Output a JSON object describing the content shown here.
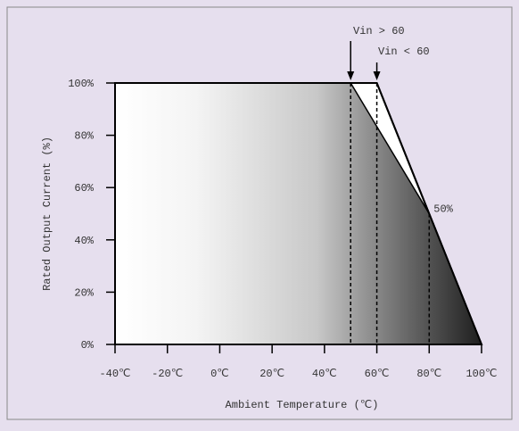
{
  "chart_data": {
    "type": "area",
    "xlabel": "Ambient Temperature (℃)",
    "ylabel": "Rated Output Current (%)",
    "xlim": [
      -40,
      100
    ],
    "ylim": [
      0,
      100
    ],
    "x_ticks": [
      "-40℃",
      "-20℃",
      "0℃",
      "20℃",
      "40℃",
      "60℃",
      "80℃",
      "100℃"
    ],
    "y_ticks": [
      "0%",
      "20%",
      "40%",
      "60%",
      "80%",
      "100%"
    ],
    "series": [
      {
        "name": "Vin > 60",
        "x": [
          -40,
          50,
          80,
          100
        ],
        "y": [
          100,
          100,
          50,
          0
        ]
      },
      {
        "name": "Vin < 60",
        "x": [
          -40,
          60,
          80,
          100
        ],
        "y": [
          100,
          100,
          50,
          0
        ]
      }
    ],
    "annotations": {
      "vin_gt_label": "Vin > 60",
      "vin_lt_label": "Vin < 60",
      "half_label": "50%"
    },
    "reference_lines_x": [
      50,
      60,
      80
    ],
    "grid": false
  }
}
